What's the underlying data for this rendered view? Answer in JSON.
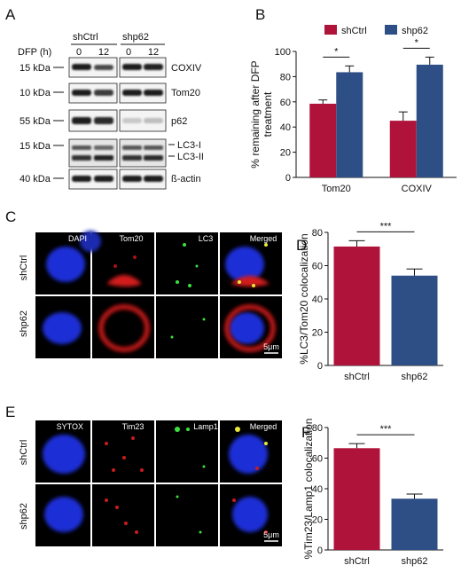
{
  "colors": {
    "shCtrl": "#b0133a",
    "shp62": "#2e4f86"
  },
  "panels": {
    "a": {
      "letter": "A",
      "group_ctrl": "shCtrl",
      "group_kd": "shp62",
      "dfp_label": "DFP (h)",
      "timepoints": [
        "0",
        "12",
        "0",
        "12"
      ],
      "blots": [
        {
          "kda": "15 kDa",
          "protein": "COXIV"
        },
        {
          "kda": "10 kDa",
          "protein": "Tom20"
        },
        {
          "kda": "55 kDa",
          "protein": "p62"
        },
        {
          "kda": "15 kDa",
          "protein": "LC3-I",
          "protein2": "LC3-II"
        },
        {
          "kda": "40 kDa",
          "protein": "ß-actin"
        }
      ]
    },
    "b": {
      "letter": "B"
    },
    "c": {
      "letter": "C",
      "channels": [
        "DAPI",
        "Tom20",
        "LC3",
        "Merged"
      ],
      "rows": [
        "shCtrl",
        "shp62"
      ],
      "scale": "5μm"
    },
    "d": {
      "letter": "D"
    },
    "e": {
      "letter": "E",
      "channels": [
        "SYTOX",
        "Tim23",
        "Lamp1",
        "Merged"
      ],
      "rows": [
        "shCtrl",
        "shp62"
      ],
      "scale": "5μm"
    },
    "f": {
      "letter": "F"
    }
  },
  "chart_data": [
    {
      "type": "bar",
      "categories": [
        "Tom20",
        "COXIV"
      ],
      "series": [
        {
          "name": "shCtrl",
          "values": [
            58.5,
            45
          ],
          "errors": [
            3,
            7
          ]
        },
        {
          "name": "shp62",
          "values": [
            83.5,
            89.5
          ],
          "errors": [
            5,
            6
          ]
        }
      ],
      "ylabel_lines": [
        "% remaining after DFP",
        "treatment"
      ],
      "ylim": [
        0,
        100
      ],
      "yticks": [
        0,
        20,
        40,
        60,
        80,
        100
      ],
      "legend": "top",
      "significance": [
        "*",
        "*"
      ]
    },
    {
      "type": "bar",
      "categories": [
        "shCtrl",
        "shp62"
      ],
      "values": [
        71.5,
        54
      ],
      "errors": [
        3.5,
        4
      ],
      "ylabel": "%LC3/Tom20 colocalization",
      "ylim": [
        0,
        80
      ],
      "yticks": [
        0,
        20,
        40,
        60,
        80
      ],
      "significance": "***"
    },
    {
      "type": "bar",
      "categories": [
        "shCtrl",
        "shp62"
      ],
      "values": [
        66.5,
        33.5
      ],
      "errors": [
        3,
        3
      ],
      "ylabel": "%Tim23/Lamp1 colocalization",
      "ylim": [
        0,
        80
      ],
      "yticks": [
        0,
        20,
        40,
        60,
        80
      ],
      "significance": "***"
    }
  ]
}
